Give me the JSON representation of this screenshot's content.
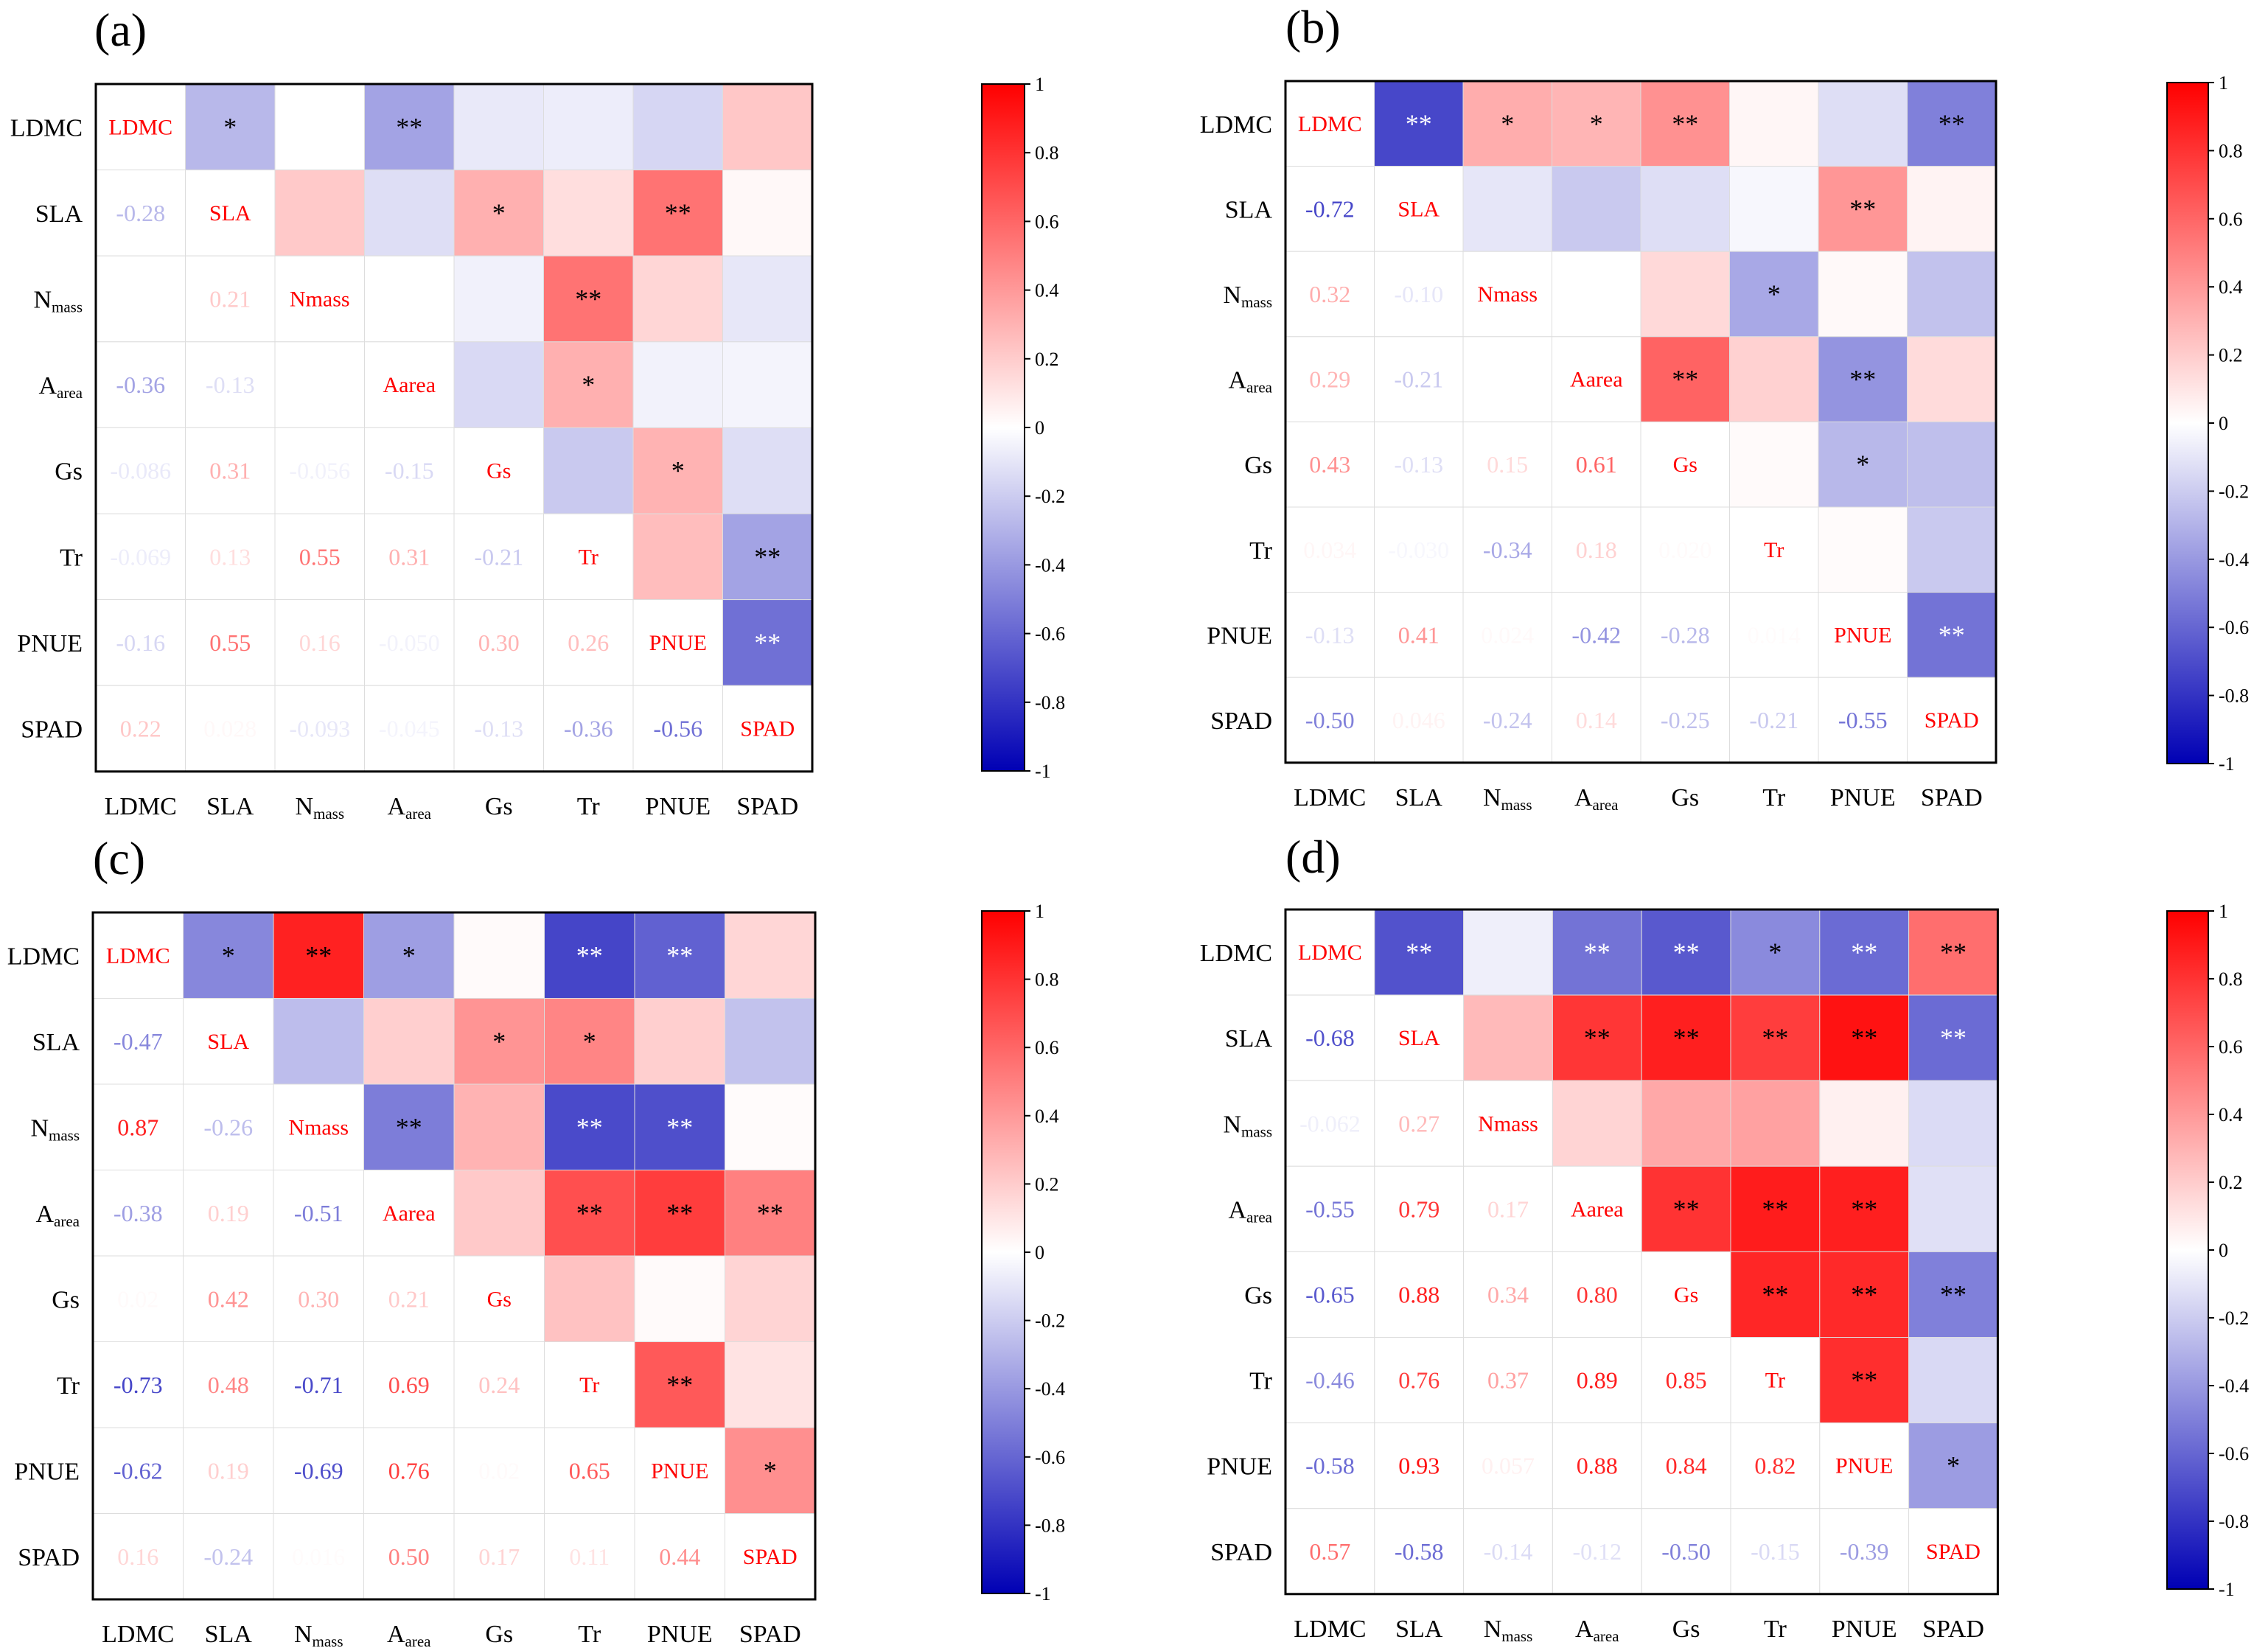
{
  "figure": {
    "variables": [
      "LDMC",
      "SLA",
      "Nmass",
      "Aarea",
      "Gs",
      "Tr",
      "PNUE",
      "SPAD"
    ],
    "axis_labels": [
      {
        "main": "LDMC",
        "sub": ""
      },
      {
        "main": "SLA",
        "sub": ""
      },
      {
        "main": "N",
        "sub": "mass"
      },
      {
        "main": "A",
        "sub": "area"
      },
      {
        "main": "Gs",
        "sub": ""
      },
      {
        "main": "Tr",
        "sub": ""
      },
      {
        "main": "PNUE",
        "sub": ""
      },
      {
        "main": "SPAD",
        "sub": ""
      }
    ],
    "colors": {
      "positive": "#ff0000",
      "negative": "#0000b4",
      "significance_mark": "#000000",
      "significance_mark_on_dark": "#ffffff",
      "grid": "#dddddd",
      "frame": "#000000"
    }
  },
  "colorbar": {
    "ticks": [
      1,
      0.8,
      0.6,
      0.4,
      0.2,
      0,
      -0.2,
      -0.4,
      -0.6,
      -0.8,
      -1
    ],
    "tick_labels": [
      "1",
      "0.8",
      "0.6",
      "0.4",
      "0.2",
      "0",
      "-0.2",
      "-0.4",
      "-0.6",
      "-0.8",
      "-1"
    ]
  },
  "chart_data": [
    {
      "type": "heatmap",
      "panel": "(a)",
      "title": "(a)",
      "variables": [
        "LDMC",
        "SLA",
        "Nmass",
        "Aarea",
        "Gs",
        "Tr",
        "PNUE",
        "SPAD"
      ],
      "value_range": [
        -1,
        1
      ],
      "lower_labels": [
        [],
        [
          "-0.28"
        ],
        [
          "",
          "0.21"
        ],
        [
          "-0.36",
          "-0.13",
          ""
        ],
        [
          "-0.086",
          "0.31",
          "-0.056",
          "-0.15"
        ],
        [
          "-0.069",
          "0.13",
          "0.55",
          "0.31",
          "-0.21"
        ],
        [
          "-0.16",
          "0.55",
          "0.16",
          "-0.050",
          "0.30",
          "0.26"
        ],
        [
          "0.22",
          "0.028",
          "-0.093",
          "-0.045",
          "-0.13",
          "-0.36",
          "-0.56"
        ]
      ],
      "matrix": [
        [
          1,
          -0.28,
          0,
          -0.36,
          -0.086,
          -0.069,
          -0.16,
          0.22
        ],
        [
          -0.28,
          1,
          0.21,
          -0.13,
          0.31,
          0.13,
          0.55,
          0.028
        ],
        [
          0,
          0.21,
          1,
          0,
          -0.056,
          0.55,
          0.16,
          -0.093
        ],
        [
          -0.36,
          -0.13,
          0,
          1,
          -0.15,
          0.31,
          -0.05,
          -0.045
        ],
        [
          -0.086,
          0.31,
          -0.056,
          -0.15,
          1,
          -0.21,
          0.3,
          -0.13
        ],
        [
          -0.069,
          0.13,
          0.55,
          0.31,
          -0.21,
          1,
          0.26,
          -0.36
        ],
        [
          -0.16,
          0.55,
          0.16,
          -0.05,
          0.3,
          0.26,
          1,
          -0.56
        ],
        [
          0.22,
          0.028,
          -0.093,
          -0.045,
          -0.13,
          -0.36,
          -0.56,
          1
        ]
      ],
      "upper_marks": [
        [
          "",
          "*",
          "",
          "**",
          "",
          "",
          "",
          ""
        ],
        [
          "",
          "",
          "",
          "",
          "*",
          "",
          "**",
          ""
        ],
        [
          "",
          "",
          "",
          "",
          "",
          "**",
          "",
          ""
        ],
        [
          "",
          "",
          "",
          "",
          "",
          "*",
          "",
          ""
        ],
        [
          "",
          "",
          "",
          "",
          "",
          "",
          "*",
          ""
        ],
        [
          "",
          "",
          "",
          "",
          "",
          "",
          "",
          "**"
        ],
        [
          "",
          "",
          "",
          "",
          "",
          "",
          "",
          "**"
        ],
        [
          "",
          "",
          "",
          "",
          "",
          "",
          "",
          ""
        ]
      ]
    },
    {
      "type": "heatmap",
      "panel": "(b)",
      "title": "(b)",
      "variables": [
        "LDMC",
        "SLA",
        "Nmass",
        "Aarea",
        "Gs",
        "Tr",
        "PNUE",
        "SPAD"
      ],
      "value_range": [
        -1,
        1
      ],
      "lower_labels": [
        [],
        [
          "-0.72"
        ],
        [
          "0.32",
          "-0.10"
        ],
        [
          "0.29",
          "-0.21",
          ""
        ],
        [
          "0.43",
          "-0.13",
          "0.15",
          "0.61"
        ],
        [
          "0.034",
          "-0.030",
          "-0.34",
          "0.18",
          "0.020"
        ],
        [
          "-0.13",
          "0.41",
          "0.024",
          "-0.42",
          "-0.28",
          "0.014"
        ],
        [
          "-0.50",
          "0.046",
          "-0.24",
          "0.14",
          "-0.25",
          "-0.21",
          "-0.55"
        ]
      ],
      "matrix": [
        [
          1,
          -0.72,
          0.32,
          0.29,
          0.43,
          0.034,
          -0.13,
          -0.5
        ],
        [
          -0.72,
          1,
          -0.1,
          -0.21,
          -0.13,
          -0.03,
          0.41,
          0.046
        ],
        [
          0.32,
          -0.1,
          1,
          0,
          0.15,
          -0.34,
          0.024,
          -0.24
        ],
        [
          0.29,
          -0.21,
          0,
          1,
          0.61,
          0.18,
          -0.42,
          0.14
        ],
        [
          0.43,
          -0.13,
          0.15,
          0.61,
          1,
          0.02,
          -0.28,
          -0.25
        ],
        [
          0.034,
          -0.03,
          -0.34,
          0.18,
          0.02,
          1,
          0.014,
          -0.21
        ],
        [
          -0.13,
          0.41,
          0.024,
          -0.42,
          -0.28,
          0.014,
          1,
          -0.55
        ],
        [
          -0.5,
          0.046,
          -0.24,
          0.14,
          -0.25,
          -0.21,
          -0.55,
          1
        ]
      ],
      "upper_marks": [
        [
          "",
          "**",
          "*",
          "*",
          "**",
          "",
          "",
          "**"
        ],
        [
          "",
          "",
          "",
          "",
          "",
          "",
          "**",
          ""
        ],
        [
          "",
          "",
          "",
          "",
          "",
          "*",
          "",
          ""
        ],
        [
          "",
          "",
          "",
          "",
          "**",
          "",
          "**",
          ""
        ],
        [
          "",
          "",
          "",
          "",
          "",
          "",
          "*",
          ""
        ],
        [
          "",
          "",
          "",
          "",
          "",
          "",
          "",
          ""
        ],
        [
          "",
          "",
          "",
          "",
          "",
          "",
          "",
          "**"
        ],
        [
          "",
          "",
          "",
          "",
          "",
          "",
          "",
          ""
        ]
      ]
    },
    {
      "type": "heatmap",
      "panel": "(c)",
      "title": "(c)",
      "variables": [
        "LDMC",
        "SLA",
        "Nmass",
        "Aarea",
        "Gs",
        "Tr",
        "PNUE",
        "SPAD"
      ],
      "value_range": [
        -1,
        1
      ],
      "lower_labels": [
        [],
        [
          "-0.47"
        ],
        [
          "0.87",
          "-0.26"
        ],
        [
          "-0.38",
          "0.19",
          "-0.51"
        ],
        [
          "0.02",
          "0.42",
          "0.30",
          "0.21"
        ],
        [
          "-0.73",
          "0.48",
          "-0.71",
          "0.69",
          "0.24"
        ],
        [
          "-0.62",
          "0.19",
          "-0.69",
          "0.76",
          "0.02",
          "0.65"
        ],
        [
          "0.16",
          "-0.24",
          "0.016",
          "0.50",
          "0.17",
          "0.11",
          "0.44"
        ]
      ],
      "matrix": [
        [
          1,
          -0.47,
          0.87,
          -0.38,
          0.02,
          -0.73,
          -0.62,
          0.16
        ],
        [
          -0.47,
          1,
          -0.26,
          0.19,
          0.42,
          0.48,
          0.19,
          -0.24
        ],
        [
          0.87,
          -0.26,
          1,
          -0.51,
          0.3,
          -0.71,
          -0.69,
          0.016
        ],
        [
          -0.38,
          0.19,
          -0.51,
          1,
          0.21,
          0.69,
          0.76,
          0.5
        ],
        [
          0.02,
          0.42,
          0.3,
          0.21,
          1,
          0.24,
          0.02,
          0.17
        ],
        [
          -0.73,
          0.48,
          -0.71,
          0.69,
          0.24,
          1,
          0.65,
          0.11
        ],
        [
          -0.62,
          0.19,
          -0.69,
          0.76,
          0.02,
          0.65,
          1,
          0.44
        ],
        [
          0.16,
          -0.24,
          0.016,
          0.5,
          0.17,
          0.11,
          0.44,
          1
        ]
      ],
      "upper_marks": [
        [
          "",
          "*",
          "**",
          "*",
          "",
          "**",
          "**",
          ""
        ],
        [
          "",
          "",
          "",
          "",
          "*",
          "*",
          "",
          ""
        ],
        [
          "",
          "",
          "",
          "**",
          "",
          "**",
          "**",
          ""
        ],
        [
          "",
          "",
          "",
          "",
          "",
          "**",
          "**",
          "**"
        ],
        [
          "",
          "",
          "",
          "",
          "",
          "",
          "",
          ""
        ],
        [
          "",
          "",
          "",
          "",
          "",
          "",
          "**",
          ""
        ],
        [
          "",
          "",
          "",
          "",
          "",
          "",
          "",
          "*"
        ],
        [
          "",
          "",
          "",
          "",
          "",
          "",
          "",
          ""
        ]
      ]
    },
    {
      "type": "heatmap",
      "panel": "(d)",
      "title": "(d)",
      "variables": [
        "LDMC",
        "SLA",
        "Nmass",
        "Aarea",
        "Gs",
        "Tr",
        "PNUE",
        "SPAD"
      ],
      "value_range": [
        -1,
        1
      ],
      "lower_labels": [
        [],
        [
          "-0.68"
        ],
        [
          "-0.062",
          "0.27"
        ],
        [
          "-0.55",
          "0.79",
          "0.17"
        ],
        [
          "-0.65",
          "0.88",
          "0.34",
          "0.80"
        ],
        [
          "-0.46",
          "0.76",
          "0.37",
          "0.89",
          "0.85"
        ],
        [
          "-0.58",
          "0.93",
          "0.057",
          "0.88",
          "0.84",
          "0.82"
        ],
        [
          "0.57",
          "-0.58",
          "-0.14",
          "-0.12",
          "-0.50",
          "-0.15",
          "-0.39"
        ]
      ],
      "matrix": [
        [
          1,
          -0.68,
          -0.062,
          -0.55,
          -0.65,
          -0.46,
          -0.58,
          0.57
        ],
        [
          -0.68,
          1,
          0.27,
          0.79,
          0.88,
          0.76,
          0.93,
          -0.58
        ],
        [
          -0.062,
          0.27,
          1,
          0.17,
          0.34,
          0.37,
          0.057,
          -0.14
        ],
        [
          -0.55,
          0.79,
          0.17,
          1,
          0.8,
          0.89,
          0.88,
          -0.12
        ],
        [
          -0.65,
          0.88,
          0.34,
          0.8,
          1,
          0.85,
          0.84,
          -0.5
        ],
        [
          -0.46,
          0.76,
          0.37,
          0.89,
          0.85,
          1,
          0.82,
          -0.15
        ],
        [
          -0.58,
          0.93,
          0.057,
          0.88,
          0.84,
          0.82,
          1,
          -0.39
        ],
        [
          0.57,
          -0.58,
          -0.14,
          -0.12,
          -0.5,
          -0.15,
          -0.39,
          1
        ]
      ],
      "upper_marks": [
        [
          "",
          "**",
          "",
          "**",
          "**",
          "*",
          "**",
          "**"
        ],
        [
          "",
          "",
          "",
          "**",
          "**",
          "**",
          "**",
          "**"
        ],
        [
          "",
          "",
          "",
          "",
          "",
          "",
          "",
          ""
        ],
        [
          "",
          "",
          "",
          "",
          "**",
          "**",
          "**",
          ""
        ],
        [
          "",
          "",
          "",
          "",
          "",
          "**",
          "**",
          "**"
        ],
        [
          "",
          "",
          "",
          "",
          "",
          "",
          "**",
          ""
        ],
        [
          "",
          "",
          "",
          "",
          "",
          "",
          "",
          "*"
        ],
        [
          "",
          "",
          "",
          "",
          "",
          "",
          "",
          ""
        ]
      ]
    }
  ]
}
